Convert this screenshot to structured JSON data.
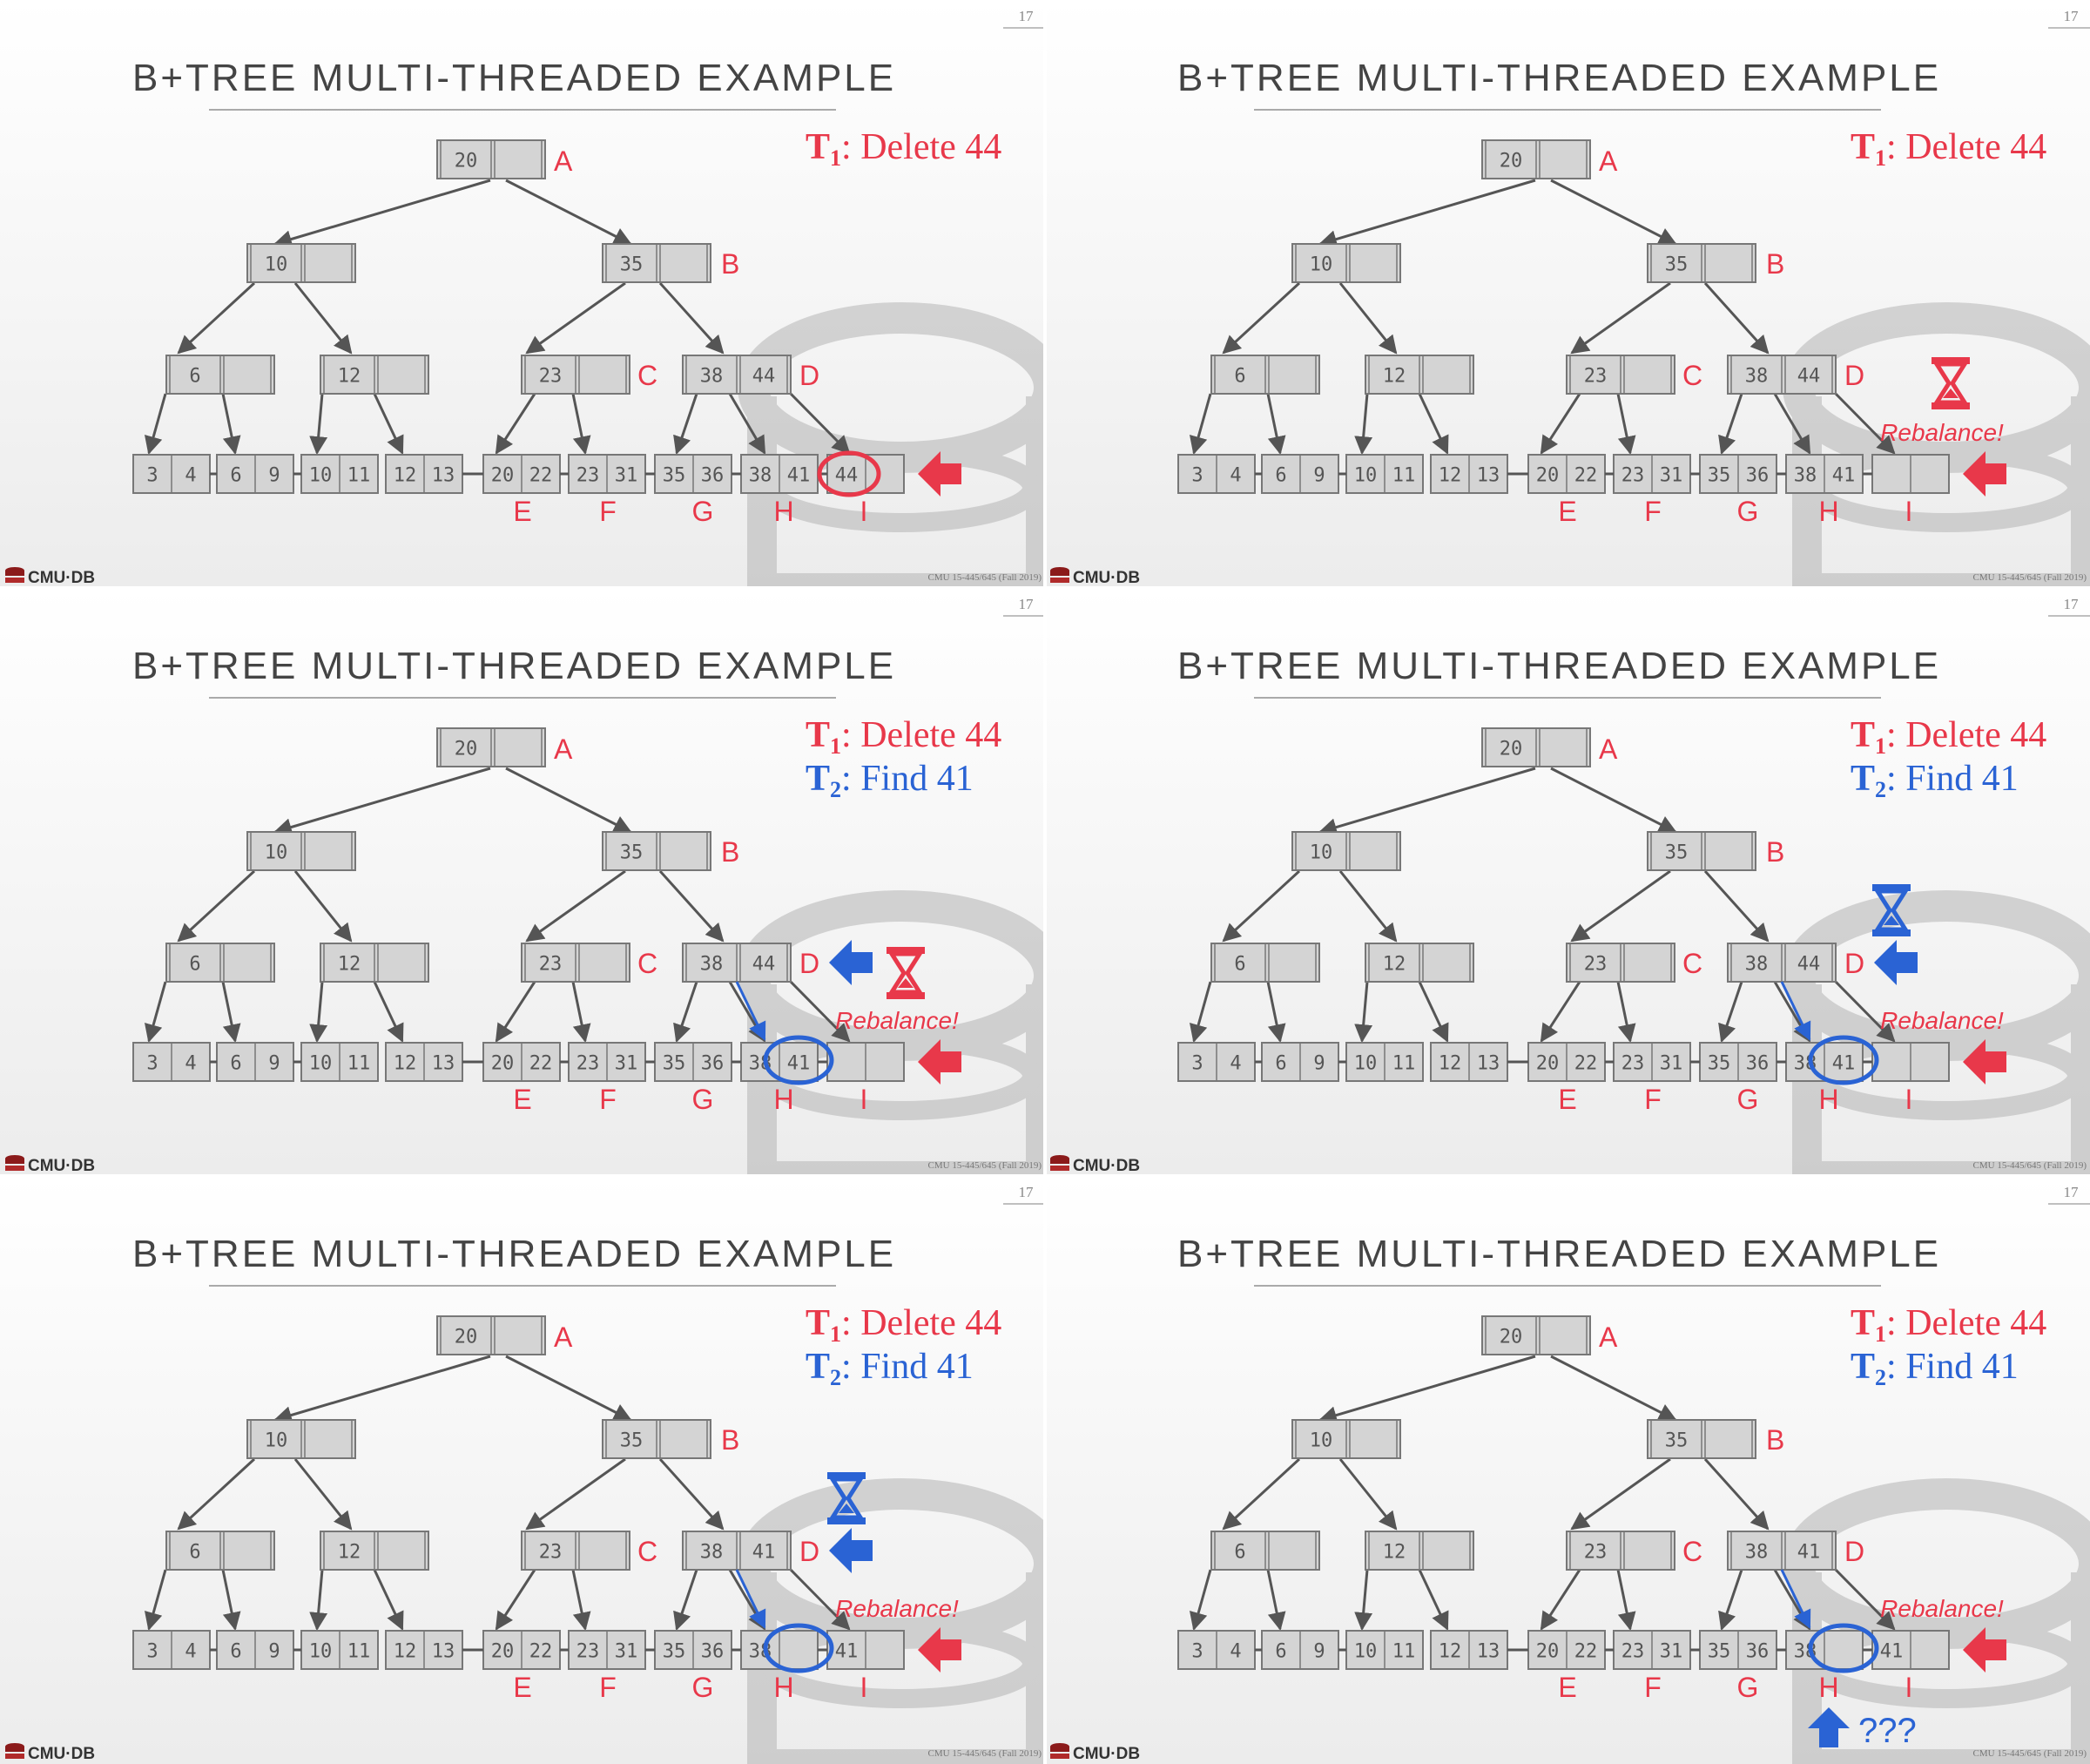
{
  "page_number": "17",
  "title": "B+TREE MULTI-THREADED EXAMPLE",
  "footer_logo": "CMU·DB",
  "footer_course": "CMU 15-445/645 (Fall 2019)",
  "colors": {
    "red": "#e8384a",
    "blue": "#2a63d4",
    "node_fill": "#d4d4d4",
    "node_stroke": "#777777",
    "text": "#555555"
  },
  "tree": {
    "root": {
      "label": "A",
      "keys": [
        "20",
        ""
      ]
    },
    "inner_left": {
      "keys": [
        "10",
        ""
      ]
    },
    "inner_right": {
      "label": "B",
      "keys": [
        "35",
        ""
      ]
    },
    "n6": {
      "keys": [
        "6",
        ""
      ]
    },
    "n12": {
      "keys": [
        "12",
        ""
      ]
    },
    "c": {
      "label": "C",
      "keys": [
        "23",
        ""
      ]
    },
    "d": {
      "label": "D"
    },
    "leaves_left": [
      [
        "3",
        "4"
      ],
      [
        "6",
        "9"
      ],
      [
        "10",
        "11"
      ],
      [
        "12",
        "13"
      ]
    ],
    "leaves_right": [
      [
        "20",
        "22"
      ],
      [
        "23",
        "31"
      ],
      [
        "35",
        "36"
      ]
    ],
    "leaf_labels": [
      "E",
      "F",
      "G",
      "H",
      "I"
    ]
  },
  "panels": [
    {
      "t1": "Delete 44",
      "t2": null,
      "d_keys": [
        "38",
        "44"
      ],
      "h_keys": [
        "38",
        "41"
      ],
      "i_keys": [
        "44",
        ""
      ],
      "rebalance": null,
      "red_hourglass": false,
      "blue_hourglass": false,
      "blue_d_arrow": false,
      "red_circle_i": true,
      "blue_circle_h": false,
      "blue_link": false,
      "question": null
    },
    {
      "t1": "Delete 44",
      "t2": null,
      "d_keys": [
        "38",
        "44"
      ],
      "h_keys": [
        "38",
        "41"
      ],
      "i_keys": [
        "",
        ""
      ],
      "rebalance": "Rebalance!",
      "red_hourglass": true,
      "blue_hourglass": false,
      "blue_d_arrow": false,
      "red_circle_i": false,
      "blue_circle_h": false,
      "blue_link": false,
      "question": null
    },
    {
      "t1": "Delete 44",
      "t2": "Find 41",
      "d_keys": [
        "38",
        "44"
      ],
      "h_keys": [
        "38",
        "41"
      ],
      "i_keys": [
        "",
        ""
      ],
      "rebalance": "Rebalance!",
      "red_hourglass": true,
      "blue_hourglass": false,
      "blue_d_arrow": true,
      "red_circle_i": false,
      "blue_circle_h": true,
      "blue_link": true,
      "question": null
    },
    {
      "t1": "Delete 44",
      "t2": "Find 41",
      "d_keys": [
        "38",
        "44"
      ],
      "h_keys": [
        "38",
        "41"
      ],
      "i_keys": [
        "",
        ""
      ],
      "rebalance": "Rebalance!",
      "red_hourglass": false,
      "blue_hourglass": true,
      "blue_d_arrow": true,
      "red_circle_i": false,
      "blue_circle_h": true,
      "blue_link": true,
      "question": null
    },
    {
      "t1": "Delete 44",
      "t2": "Find 41",
      "d_keys": [
        "38",
        "41"
      ],
      "h_keys": [
        "38",
        ""
      ],
      "i_keys": [
        "41",
        ""
      ],
      "rebalance": "Rebalance!",
      "red_hourglass": false,
      "blue_hourglass": true,
      "blue_d_arrow": true,
      "red_circle_i": false,
      "blue_circle_h": true,
      "blue_link": true,
      "question": null
    },
    {
      "t1": "Delete 44",
      "t2": "Find 41",
      "d_keys": [
        "38",
        "41"
      ],
      "h_keys": [
        "38",
        ""
      ],
      "i_keys": [
        "41",
        ""
      ],
      "rebalance": "Rebalance!",
      "red_hourglass": false,
      "blue_hourglass": false,
      "blue_d_arrow": false,
      "red_circle_i": false,
      "blue_circle_h": true,
      "blue_link": true,
      "question": "???"
    }
  ]
}
